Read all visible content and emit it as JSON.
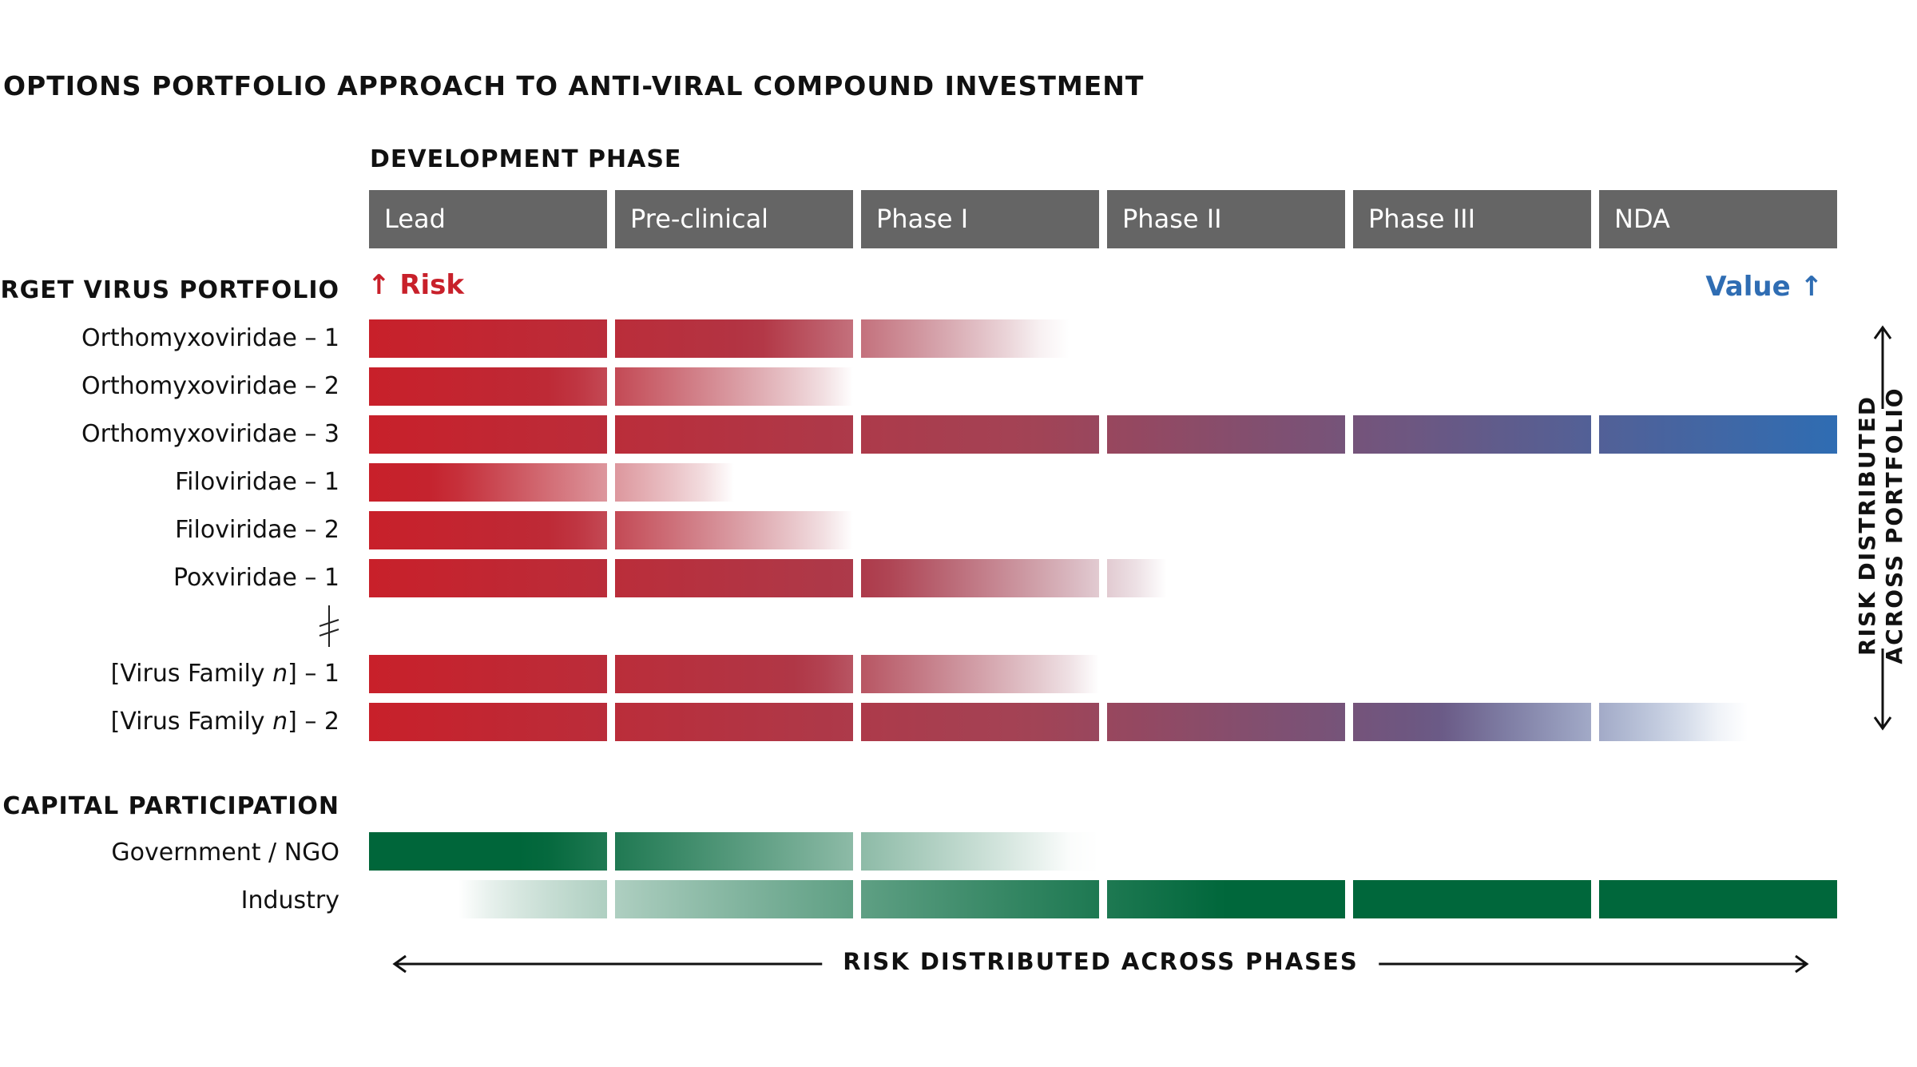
{
  "title": "OPTIONS PORTFOLIO APPROACH TO ANTI-VIRAL COMPOUND INVESTMENT",
  "development_phase_label": "DEVELOPMENT PHASE",
  "phases": [
    "Lead",
    "Pre-clinical",
    "Phase I",
    "Phase II",
    "Phase III",
    "NDA"
  ],
  "target_portfolio_label": "TARGET VIRUS PORTFOLIO",
  "risk_label": "Risk",
  "value_label": "Value",
  "virus_rows": [
    {
      "pre": "Orthomyxoviridae – 1",
      "italic": "",
      "post": "",
      "extent": 2.8
    },
    {
      "pre": "Orthomyxoviridae – 2",
      "italic": "",
      "post": "",
      "extent": 2.0
    },
    {
      "pre": "Orthomyxoviridae – 3",
      "italic": "",
      "post": "",
      "extent": 6.0
    },
    {
      "pre": "Filoviridae – 1",
      "italic": "",
      "post": "",
      "extent": 1.5
    },
    {
      "pre": "Filoviridae – 2",
      "italic": "",
      "post": "",
      "extent": 2.0
    },
    {
      "pre": "Poxviridae – 1",
      "italic": "",
      "post": "",
      "extent": 3.25
    },
    {
      "pre": "[Virus Family ",
      "italic": "n",
      "post": "] – 1",
      "extent": 3.0
    },
    {
      "pre": "[Virus Family ",
      "italic": "n",
      "post": "] – 2",
      "extent": 5.55
    }
  ],
  "capital_label": "CAPITAL PARTICIPATION",
  "capital_rows": [
    {
      "label": "Government / NGO",
      "direction": "fade-out",
      "extent": 2.9
    },
    {
      "label": "Industry",
      "direction": "fade-in",
      "start": 0.4
    }
  ],
  "vertical_axis_label": [
    "RISK DISTRIBUTED",
    "ACROSS PORTFOLIO"
  ],
  "horizontal_axis_label": "RISK DISTRIBUTED ACROSS PHASES",
  "colors": {
    "risk_red": "#c8202a",
    "value_blue": "#2f6db3",
    "phase_grey": "#656565",
    "government_green": "#00663a",
    "industry_green": "#00673b"
  }
}
